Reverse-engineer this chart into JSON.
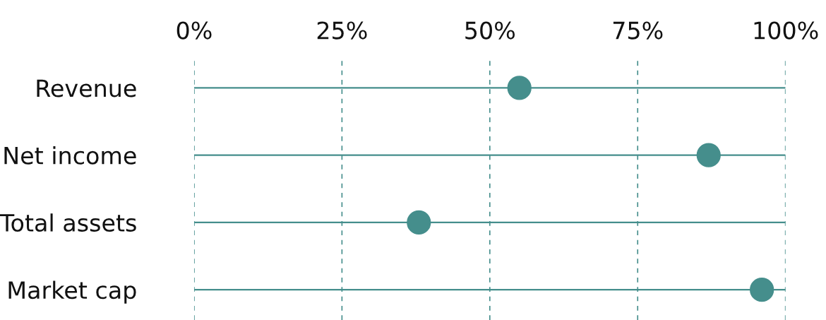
{
  "chart_data": {
    "type": "scatter",
    "orientation": "horizontal",
    "categories": [
      "Revenue",
      "Net income",
      "Total assets",
      "Market cap"
    ],
    "series": [
      {
        "color": "#458e8c",
        "values": [
          55,
          87,
          38,
          96
        ]
      }
    ],
    "xlim": [
      0,
      100
    ],
    "xticks": [
      {
        "value": 0,
        "label": "0%"
      },
      {
        "value": 25,
        "label": "25%"
      },
      {
        "value": 50,
        "label": "50%"
      },
      {
        "value": 75,
        "label": "75%"
      },
      {
        "value": 100,
        "label": "100%"
      }
    ],
    "grid": true,
    "marker": "circle"
  }
}
